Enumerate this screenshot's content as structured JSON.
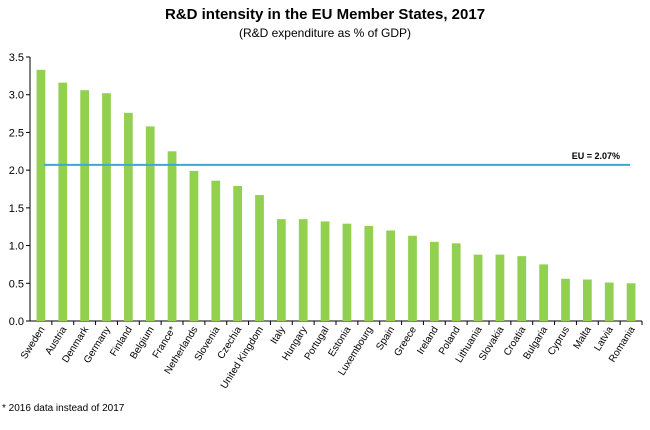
{
  "chart_data": {
    "type": "bar",
    "title": "R&D intensity in the EU Member States, 2017",
    "subtitle": "(R&D expenditure as % of GDP)",
    "xlabel": "",
    "ylabel": "",
    "categories": [
      "Sweden",
      "Austria",
      "Denmark",
      "Germany",
      "Finland",
      "Belgium",
      "France*",
      "Netherlands",
      "Slovenia",
      "Czechia",
      "United Kingdom",
      "Italy",
      "Hungary",
      "Portugal",
      "Estonia",
      "Luxembourg",
      "Spain",
      "Greece",
      "Ireland",
      "Poland",
      "Lithuania",
      "Slovakia",
      "Croatia",
      "Bulgaria",
      "Cyprus",
      "Malta",
      "Latvia",
      "Romania"
    ],
    "values": [
      3.33,
      3.16,
      3.06,
      3.02,
      2.76,
      2.58,
      2.25,
      1.99,
      1.86,
      1.79,
      1.67,
      1.35,
      1.35,
      1.32,
      1.29,
      1.26,
      1.2,
      1.13,
      1.05,
      1.03,
      0.88,
      0.88,
      0.86,
      0.75,
      0.56,
      0.55,
      0.51,
      0.5
    ],
    "ylim": [
      0,
      3.5
    ],
    "yticks": [
      "0.0",
      "0.5",
      "1.0",
      "1.5",
      "2.0",
      "2.5",
      "3.0",
      "3.5"
    ],
    "grid": false,
    "reference_line": {
      "value": 2.07,
      "label": "EU = 2.07%"
    },
    "colors": {
      "bar": "#92d050",
      "reference": "#3aa8d8",
      "axis": "#000000"
    }
  },
  "footnote": "* 2016 data instead of 2017"
}
